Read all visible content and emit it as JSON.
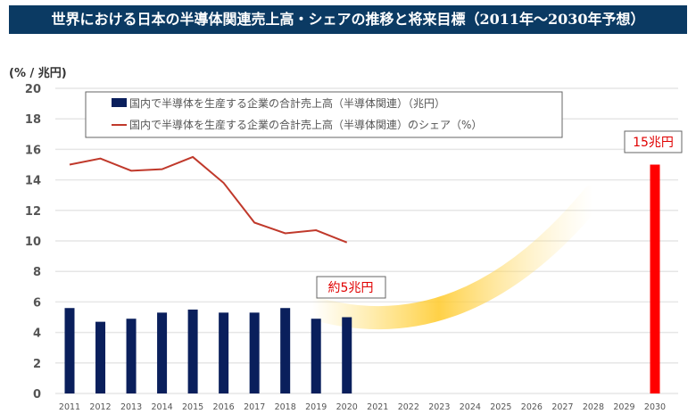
{
  "title": "世界における日本の半導体関連売上高・シェアの推移と将来目標（2011年〜2030年予想）",
  "chart_data": {
    "type": "bar",
    "title": "世界における日本の半導体関連売上高・シェアの推移と将来目標（2011年〜2030年予想）",
    "ylabel": "(% / 兆円)",
    "ylim": [
      0,
      20
    ],
    "yticks": [
      0,
      2,
      4,
      6,
      8,
      10,
      12,
      14,
      16,
      18,
      20
    ],
    "grid": true,
    "legend_position": "top",
    "categories": [
      "2011",
      "2012",
      "2013",
      "2014",
      "2015",
      "2016",
      "2017",
      "2018",
      "2019",
      "2020",
      "2021",
      "2022",
      "2023",
      "2024",
      "2025",
      "2026",
      "2027",
      "2028",
      "2029",
      "2030"
    ],
    "series": [
      {
        "name": "国内で半導体を生産する企業の合計売上高（半導体関連）（兆円）",
        "type": "bar",
        "color": "#0a1f5c",
        "values": [
          5.6,
          4.7,
          4.9,
          5.3,
          5.5,
          5.3,
          5.3,
          5.6,
          4.9,
          5.0,
          null,
          null,
          null,
          null,
          null,
          null,
          null,
          null,
          null,
          15
        ]
      },
      {
        "name": "国内で半導体を生産する企業の合計売上高（半導体関連）のシェア（%）",
        "type": "line",
        "color": "#c0392b",
        "values": [
          15.0,
          15.4,
          14.6,
          14.7,
          15.5,
          13.8,
          11.2,
          10.5,
          10.7,
          9.9,
          null,
          null,
          null,
          null,
          null,
          null,
          null,
          null,
          null,
          null
        ]
      }
    ],
    "target_color": "#ff0000",
    "annotations": [
      {
        "text": "約5兆円",
        "category": "2020"
      },
      {
        "text": "15兆円",
        "category": "2030"
      }
    ]
  }
}
